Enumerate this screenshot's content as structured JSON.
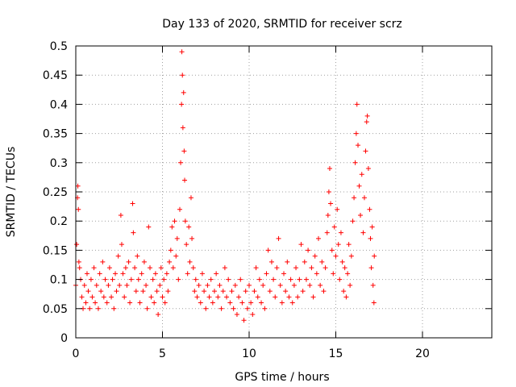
{
  "chart_data": {
    "type": "scatter",
    "title": "Day 133 of 2020, SRMTID for receiver scrz",
    "xlabel": "GPS time / hours",
    "ylabel": "SRMTID / TECUs",
    "xlim": [
      0,
      24
    ],
    "ylim": [
      0,
      0.5
    ],
    "xticks": [
      "0",
      "5",
      "10",
      "15",
      "20"
    ],
    "xtick_values": [
      0,
      5,
      10,
      15,
      20
    ],
    "yticks": [
      "0",
      "0.05",
      "0.1",
      "0.15",
      "0.2",
      "0.25",
      "0.3",
      "0.35",
      "0.4",
      "0.45",
      "0.5"
    ],
    "ytick_values": [
      0,
      0.05,
      0.1,
      0.15,
      0.2,
      0.25,
      0.3,
      0.35,
      0.4,
      0.45,
      0.5
    ],
    "grid": true,
    "marker": "plus",
    "color": "#ff0000",
    "series": [
      {
        "points": [
          [
            0.0,
            0.09
          ],
          [
            0.05,
            0.16
          ],
          [
            0.1,
            0.24
          ],
          [
            0.12,
            0.26
          ],
          [
            0.15,
            0.22
          ],
          [
            0.18,
            0.13
          ],
          [
            0.22,
            0.12
          ],
          [
            0.28,
            0.1
          ],
          [
            0.35,
            0.07
          ],
          [
            0.42,
            0.05
          ],
          [
            0.5,
            0.09
          ],
          [
            0.58,
            0.06
          ],
          [
            0.65,
            0.11
          ],
          [
            0.72,
            0.08
          ],
          [
            0.8,
            0.05
          ],
          [
            0.88,
            0.1
          ],
          [
            0.95,
            0.07
          ],
          [
            1.05,
            0.12
          ],
          [
            1.12,
            0.06
          ],
          [
            1.2,
            0.09
          ],
          [
            1.3,
            0.05
          ],
          [
            1.38,
            0.11
          ],
          [
            1.45,
            0.08
          ],
          [
            1.55,
            0.13
          ],
          [
            1.62,
            0.07
          ],
          [
            1.7,
            0.1
          ],
          [
            1.8,
            0.06
          ],
          [
            1.88,
            0.09
          ],
          [
            1.95,
            0.12
          ],
          [
            2.05,
            0.07
          ],
          [
            2.12,
            0.1
          ],
          [
            2.2,
            0.05
          ],
          [
            2.28,
            0.11
          ],
          [
            2.35,
            0.08
          ],
          [
            2.45,
            0.14
          ],
          [
            2.52,
            0.09
          ],
          [
            2.6,
            0.21
          ],
          [
            2.65,
            0.16
          ],
          [
            2.72,
            0.11
          ],
          [
            2.8,
            0.07
          ],
          [
            2.88,
            0.12
          ],
          [
            2.95,
            0.09
          ],
          [
            3.05,
            0.13
          ],
          [
            3.12,
            0.06
          ],
          [
            3.2,
            0.1
          ],
          [
            3.28,
            0.23
          ],
          [
            3.32,
            0.18
          ],
          [
            3.4,
            0.12
          ],
          [
            3.48,
            0.08
          ],
          [
            3.55,
            0.14
          ],
          [
            3.62,
            0.1
          ],
          [
            3.7,
            0.06
          ],
          [
            3.8,
            0.11
          ],
          [
            3.88,
            0.08
          ],
          [
            3.95,
            0.13
          ],
          [
            4.05,
            0.09
          ],
          [
            4.12,
            0.05
          ],
          [
            4.2,
            0.19
          ],
          [
            4.28,
            0.12
          ],
          [
            4.35,
            0.07
          ],
          [
            4.45,
            0.1
          ],
          [
            4.52,
            0.06
          ],
          [
            4.6,
            0.11
          ],
          [
            4.68,
            0.08
          ],
          [
            4.75,
            0.04
          ],
          [
            4.85,
            0.09
          ],
          [
            4.92,
            0.12
          ],
          [
            5.0,
            0.07
          ],
          [
            5.08,
            0.1
          ],
          [
            5.15,
            0.06
          ],
          [
            5.25,
            0.11
          ],
          [
            5.32,
            0.08
          ],
          [
            5.4,
            0.13
          ],
          [
            5.48,
            0.15
          ],
          [
            5.55,
            0.19
          ],
          [
            5.62,
            0.12
          ],
          [
            5.7,
            0.2
          ],
          [
            5.78,
            0.14
          ],
          [
            5.85,
            0.17
          ],
          [
            5.92,
            0.1
          ],
          [
            6.0,
            0.22
          ],
          [
            6.05,
            0.3
          ],
          [
            6.1,
            0.4
          ],
          [
            6.12,
            0.49
          ],
          [
            6.15,
            0.45
          ],
          [
            6.18,
            0.36
          ],
          [
            6.22,
            0.42
          ],
          [
            6.25,
            0.32
          ],
          [
            6.28,
            0.27
          ],
          [
            6.32,
            0.2
          ],
          [
            6.38,
            0.16
          ],
          [
            6.45,
            0.11
          ],
          [
            6.52,
            0.19
          ],
          [
            6.58,
            0.13
          ],
          [
            6.65,
            0.24
          ],
          [
            6.7,
            0.17
          ],
          [
            6.78,
            0.12
          ],
          [
            6.85,
            0.08
          ],
          [
            6.92,
            0.1
          ],
          [
            7.0,
            0.07
          ],
          [
            7.1,
            0.09
          ],
          [
            7.2,
            0.06
          ],
          [
            7.3,
            0.11
          ],
          [
            7.4,
            0.08
          ],
          [
            7.5,
            0.05
          ],
          [
            7.6,
            0.09
          ],
          [
            7.7,
            0.07
          ],
          [
            7.8,
            0.1
          ],
          [
            7.9,
            0.06
          ],
          [
            8.0,
            0.08
          ],
          [
            8.1,
            0.11
          ],
          [
            8.2,
            0.07
          ],
          [
            8.3,
            0.09
          ],
          [
            8.4,
            0.05
          ],
          [
            8.5,
            0.08
          ],
          [
            8.6,
            0.12
          ],
          [
            8.7,
            0.07
          ],
          [
            8.8,
            0.1
          ],
          [
            8.9,
            0.06
          ],
          [
            9.0,
            0.08
          ],
          [
            9.1,
            0.05
          ],
          [
            9.2,
            0.09
          ],
          [
            9.3,
            0.04
          ],
          [
            9.4,
            0.07
          ],
          [
            9.5,
            0.1
          ],
          [
            9.6,
            0.06
          ],
          [
            9.7,
            0.03
          ],
          [
            9.8,
            0.08
          ],
          [
            9.9,
            0.05
          ],
          [
            10.0,
            0.09
          ],
          [
            10.1,
            0.06
          ],
          [
            10.2,
            0.04
          ],
          [
            10.3,
            0.08
          ],
          [
            10.4,
            0.12
          ],
          [
            10.5,
            0.07
          ],
          [
            10.6,
            0.1
          ],
          [
            10.7,
            0.06
          ],
          [
            10.8,
            0.09
          ],
          [
            10.9,
            0.05
          ],
          [
            11.0,
            0.11
          ],
          [
            11.1,
            0.15
          ],
          [
            11.2,
            0.08
          ],
          [
            11.3,
            0.13
          ],
          [
            11.4,
            0.1
          ],
          [
            11.5,
            0.07
          ],
          [
            11.6,
            0.12
          ],
          [
            11.7,
            0.17
          ],
          [
            11.8,
            0.09
          ],
          [
            11.9,
            0.06
          ],
          [
            12.0,
            0.11
          ],
          [
            12.1,
            0.08
          ],
          [
            12.2,
            0.13
          ],
          [
            12.3,
            0.07
          ],
          [
            12.4,
            0.1
          ],
          [
            12.5,
            0.06
          ],
          [
            12.6,
            0.09
          ],
          [
            12.7,
            0.12
          ],
          [
            12.8,
            0.07
          ],
          [
            12.9,
            0.1
          ],
          [
            13.0,
            0.16
          ],
          [
            13.1,
            0.08
          ],
          [
            13.2,
            0.13
          ],
          [
            13.3,
            0.1
          ],
          [
            13.4,
            0.15
          ],
          [
            13.5,
            0.09
          ],
          [
            13.6,
            0.12
          ],
          [
            13.7,
            0.07
          ],
          [
            13.8,
            0.14
          ],
          [
            13.9,
            0.11
          ],
          [
            14.0,
            0.17
          ],
          [
            14.1,
            0.09
          ],
          [
            14.2,
            0.13
          ],
          [
            14.3,
            0.08
          ],
          [
            14.4,
            0.12
          ],
          [
            14.5,
            0.18
          ],
          [
            14.55,
            0.21
          ],
          [
            14.6,
            0.25
          ],
          [
            14.65,
            0.29
          ],
          [
            14.7,
            0.23
          ],
          [
            14.78,
            0.15
          ],
          [
            14.85,
            0.11
          ],
          [
            14.92,
            0.19
          ],
          [
            15.0,
            0.14
          ],
          [
            15.08,
            0.22
          ],
          [
            15.15,
            0.16
          ],
          [
            15.22,
            0.1
          ],
          [
            15.3,
            0.18
          ],
          [
            15.38,
            0.13
          ],
          [
            15.45,
            0.08
          ],
          [
            15.52,
            0.12
          ],
          [
            15.6,
            0.07
          ],
          [
            15.68,
            0.11
          ],
          [
            15.75,
            0.16
          ],
          [
            15.82,
            0.09
          ],
          [
            15.9,
            0.14
          ],
          [
            15.98,
            0.2
          ],
          [
            16.05,
            0.24
          ],
          [
            16.12,
            0.3
          ],
          [
            16.18,
            0.35
          ],
          [
            16.22,
            0.4
          ],
          [
            16.28,
            0.33
          ],
          [
            16.35,
            0.26
          ],
          [
            16.42,
            0.21
          ],
          [
            16.5,
            0.28
          ],
          [
            16.58,
            0.18
          ],
          [
            16.65,
            0.24
          ],
          [
            16.72,
            0.32
          ],
          [
            16.78,
            0.37
          ],
          [
            16.82,
            0.38
          ],
          [
            16.88,
            0.29
          ],
          [
            16.95,
            0.22
          ],
          [
            17.0,
            0.17
          ],
          [
            17.05,
            0.12
          ],
          [
            17.1,
            0.19
          ],
          [
            17.15,
            0.09
          ],
          [
            17.2,
            0.06
          ],
          [
            17.22,
            0.14
          ]
        ]
      }
    ]
  }
}
